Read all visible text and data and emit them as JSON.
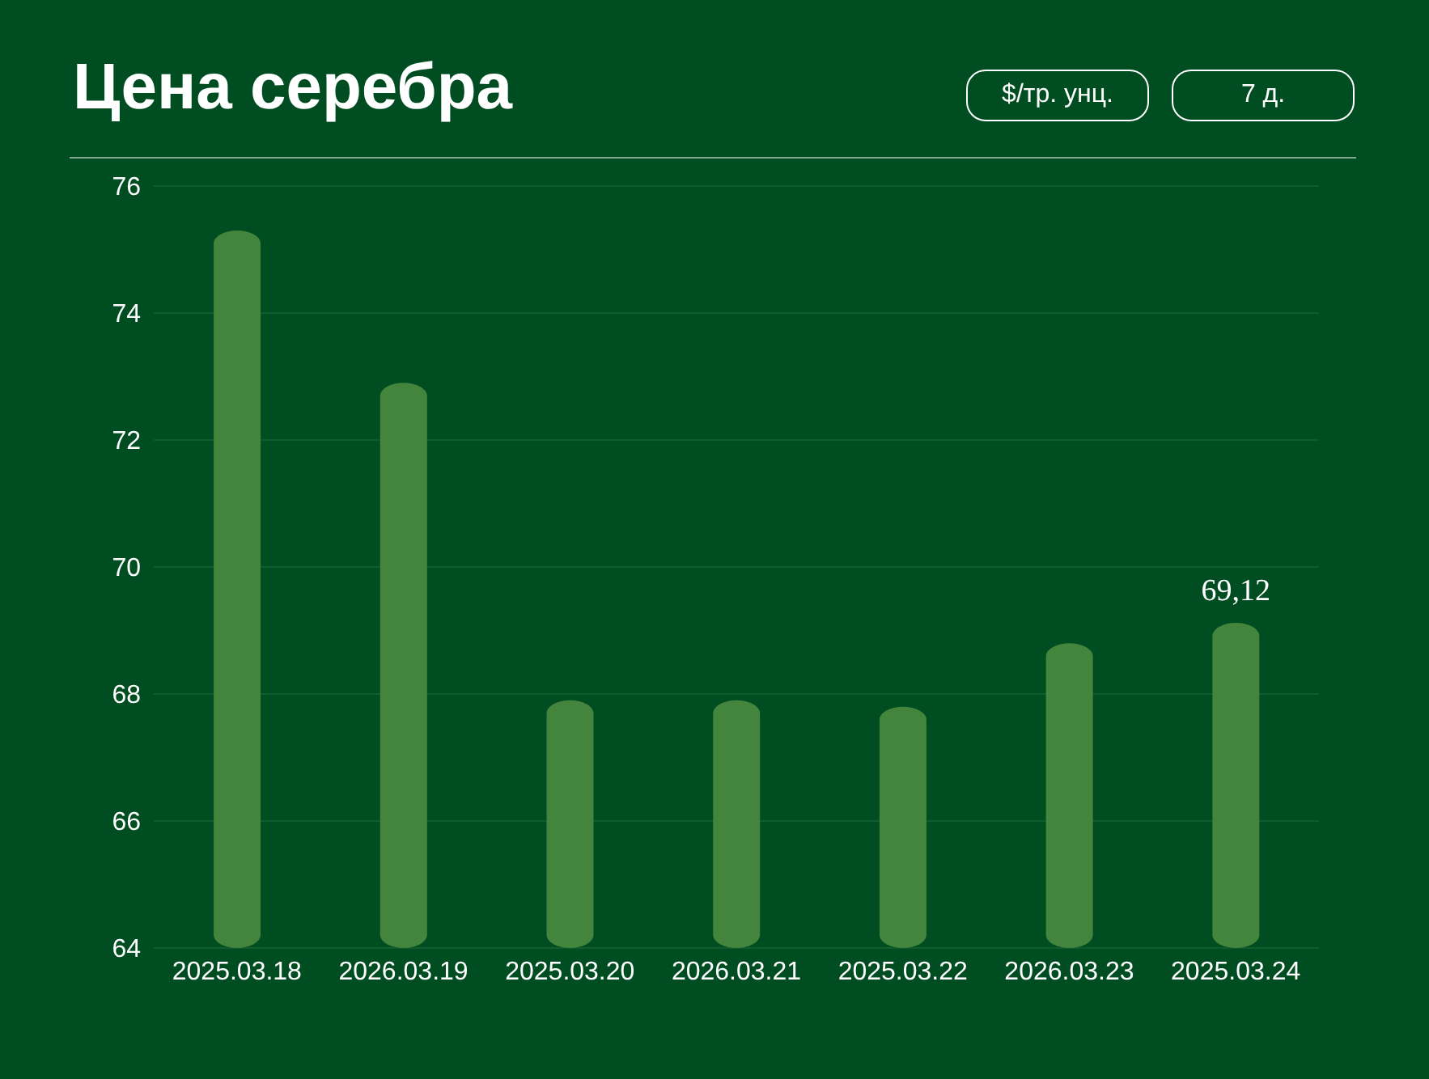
{
  "chart_data": {
    "type": "bar",
    "title": "Цена серебра",
    "annotations": [
      "$/тр. унц.",
      "7 д."
    ],
    "categories": [
      "2025.03.18",
      "2026.03.19",
      "2025.03.20",
      "2026.03.21",
      "2025.03.22",
      "2026.03.23",
      "2025.03.24"
    ],
    "values": [
      75.3,
      72.9,
      67.9,
      67.9,
      67.8,
      68.8,
      69.12
    ],
    "value_labels": [
      null,
      null,
      null,
      null,
      null,
      null,
      "69,12"
    ],
    "color": "#43853c",
    "ylim": [
      64,
      76
    ],
    "yticks": [
      64,
      66,
      68,
      70,
      72,
      74,
      76
    ],
    "grid": "y"
  }
}
